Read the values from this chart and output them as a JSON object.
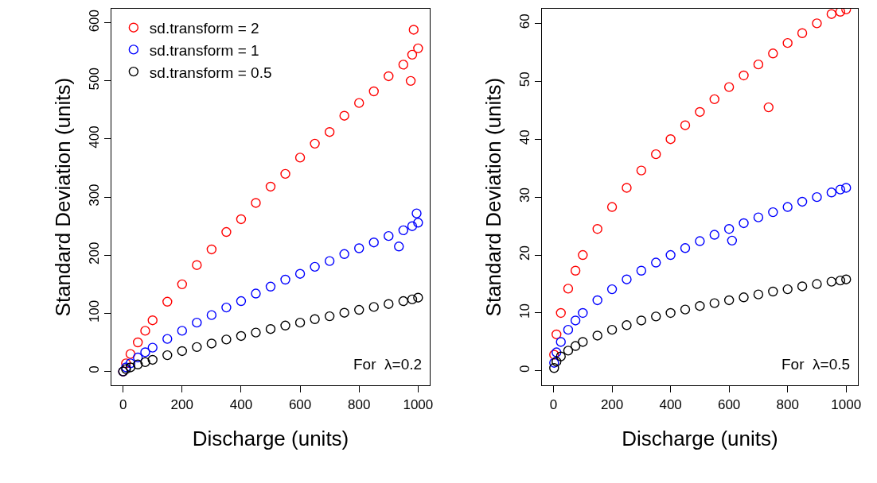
{
  "chart_data": [
    {
      "type": "scatter",
      "xlabel": "Discharge (units)",
      "ylabel": "Standard Deviation (units)",
      "annotations": [
        "For  λ=0.2"
      ],
      "xlim": [
        -40,
        1040
      ],
      "ylim": [
        -24,
        624
      ],
      "xticks": [
        0,
        200,
        400,
        600,
        800,
        1000
      ],
      "yticks": [
        0,
        100,
        200,
        300,
        400,
        500,
        600
      ],
      "marker": "circle",
      "legend": "top left",
      "series": [
        {
          "name": "sd.transform = 2",
          "color": "#ff0000",
          "x": [
            0,
            10,
            25,
            50,
            75,
            100,
            150,
            200,
            250,
            300,
            350,
            400,
            450,
            500,
            550,
            600,
            650,
            700,
            750,
            800,
            850,
            900,
            950,
            980,
            1000,
            985,
            975
          ],
          "values": [
            0,
            14,
            30,
            50,
            70,
            88,
            120,
            150,
            183,
            210,
            240,
            262,
            290,
            318,
            340,
            368,
            392,
            412,
            440,
            462,
            482,
            508,
            528,
            545,
            556,
            588,
            500
          ]
        },
        {
          "name": "sd.transform = 1",
          "color": "#0000ff",
          "x": [
            0,
            10,
            25,
            50,
            75,
            100,
            150,
            200,
            250,
            300,
            350,
            400,
            450,
            500,
            550,
            600,
            650,
            700,
            750,
            800,
            850,
            900,
            950,
            980,
            1000,
            995,
            935
          ],
          "values": [
            0,
            7,
            14,
            24,
            33,
            41,
            56,
            70,
            84,
            97,
            110,
            121,
            134,
            146,
            158,
            168,
            180,
            190,
            202,
            212,
            222,
            233,
            243,
            250,
            256,
            272,
            215
          ]
        },
        {
          "name": "sd.transform = 0.5",
          "color": "#000000",
          "x": [
            0,
            10,
            25,
            50,
            75,
            100,
            150,
            200,
            250,
            300,
            350,
            400,
            450,
            500,
            550,
            600,
            650,
            700,
            750,
            800,
            850,
            900,
            950,
            980,
            1000
          ],
          "values": [
            0,
            4,
            7,
            12,
            16,
            20,
            28,
            35,
            42,
            48,
            55,
            61,
            67,
            73,
            79,
            84,
            90,
            95,
            101,
            106,
            111,
            116,
            121,
            124,
            127
          ]
        }
      ]
    },
    {
      "type": "scatter",
      "xlabel": "Discharge (units)",
      "ylabel": "Standard Deviation (units)",
      "annotations": [
        "For  λ=0.5"
      ],
      "xlim": [
        -40,
        1040
      ],
      "ylim": [
        -2.5,
        62.5
      ],
      "xticks": [
        0,
        200,
        400,
        600,
        800,
        1000
      ],
      "yticks": [
        0,
        10,
        20,
        30,
        40,
        50,
        60
      ],
      "marker": "circle",
      "legend": false,
      "series": [
        {
          "color": "#ff0000",
          "x": [
            2,
            10,
            25,
            50,
            75,
            100,
            150,
            200,
            250,
            300,
            350,
            400,
            450,
            500,
            550,
            600,
            650,
            700,
            750,
            800,
            850,
            900,
            950,
            980,
            1000,
            735
          ],
          "values": [
            2.8,
            6.3,
            10,
            14.2,
            17.3,
            20,
            24.5,
            28.3,
            31.6,
            34.6,
            37.4,
            40,
            42.4,
            44.7,
            46.9,
            49,
            51,
            52.9,
            54.8,
            56.6,
            58.3,
            60,
            61.6,
            62,
            62.4,
            45.5
          ]
        },
        {
          "color": "#0000ff",
          "x": [
            2,
            10,
            25,
            50,
            75,
            100,
            150,
            200,
            250,
            300,
            350,
            400,
            450,
            500,
            550,
            600,
            650,
            700,
            750,
            800,
            850,
            900,
            950,
            980,
            1000,
            610
          ],
          "values": [
            1.4,
            3.2,
            5,
            7.1,
            8.7,
            10,
            12.2,
            14.1,
            15.8,
            17.3,
            18.7,
            20,
            21.2,
            22.4,
            23.5,
            24.5,
            25.5,
            26.5,
            27.4,
            28.3,
            29.2,
            30,
            30.8,
            31.3,
            31.6,
            22.5
          ]
        },
        {
          "color": "#000000",
          "x": [
            2,
            10,
            25,
            50,
            75,
            100,
            150,
            200,
            250,
            300,
            350,
            400,
            450,
            500,
            550,
            600,
            650,
            700,
            750,
            800,
            850,
            900,
            950,
            980,
            1000
          ],
          "values": [
            0.5,
            1.6,
            2.5,
            3.5,
            4.3,
            5,
            6.1,
            7.1,
            7.9,
            8.7,
            9.4,
            10,
            10.6,
            11.2,
            11.7,
            12.2,
            12.7,
            13.2,
            13.7,
            14.1,
            14.6,
            15,
            15.4,
            15.6,
            15.8
          ]
        }
      ]
    }
  ]
}
